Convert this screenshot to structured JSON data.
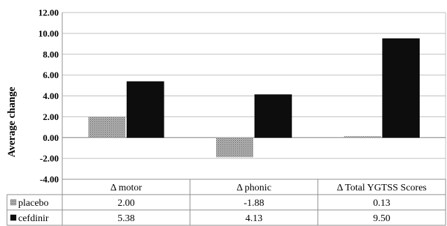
{
  "chart_data": {
    "type": "bar",
    "title": "",
    "ylabel": "Average change",
    "ylim": [
      -4,
      12
    ],
    "yticks": [
      "12.00",
      "10.00",
      "8.00",
      "6.00",
      "4.00",
      "2.00",
      "0.00",
      "-2.00",
      "-4.00"
    ],
    "categories": [
      "Δ motor",
      "Δ phonic",
      "Δ Total YGTSS Scores"
    ],
    "series": [
      {
        "name": "placebo",
        "values": [
          2.0,
          -1.88,
          0.13
        ],
        "labels": [
          "2.00",
          "-1.88",
          "0.13"
        ],
        "color": "#9a9a9a",
        "pattern": "dotted"
      },
      {
        "name": "cefdinir",
        "values": [
          5.38,
          4.13,
          9.5
        ],
        "labels": [
          "5.38",
          "4.13",
          "9.50"
        ],
        "color": "#0d0d0d",
        "pattern": "solid"
      }
    ],
    "grid": true,
    "legend": "data-table"
  }
}
